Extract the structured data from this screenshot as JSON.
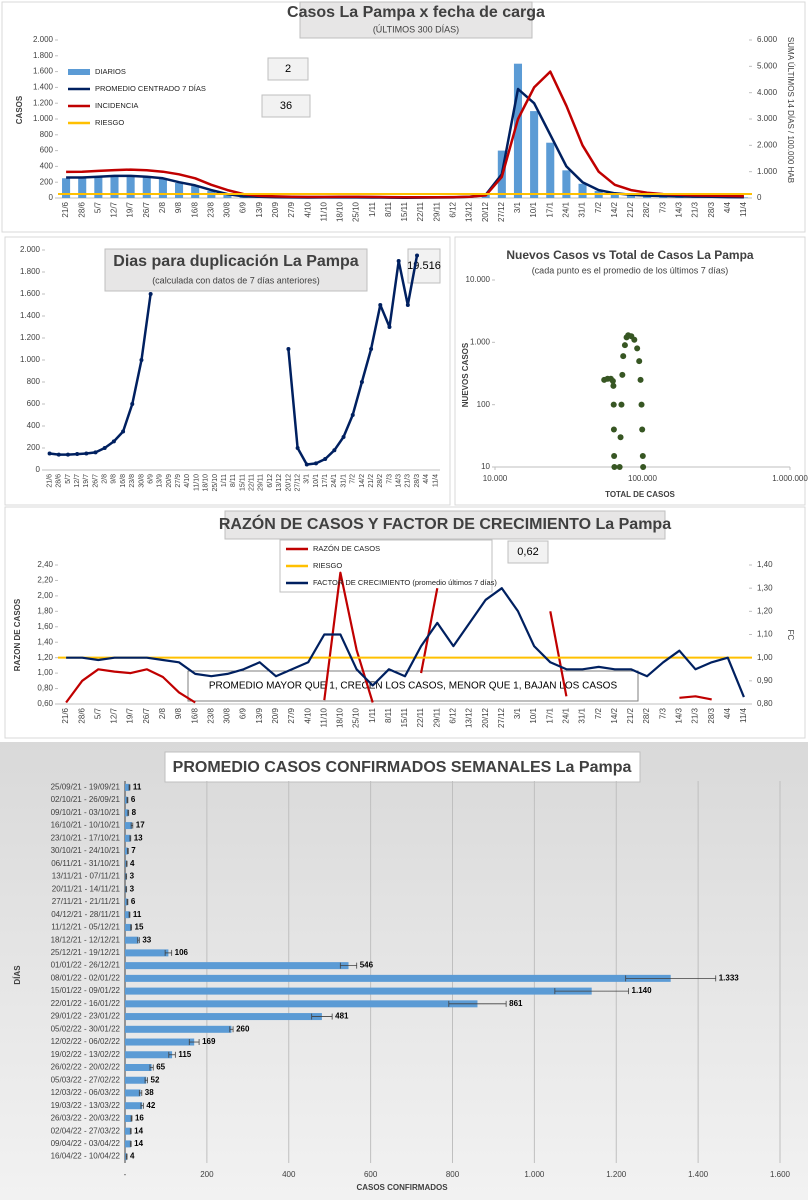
{
  "chart_data": [
    {
      "type": "combo",
      "title": "Casos La Pampa x fecha de carga",
      "subtitle": "(ÚLTIMOS 300 DÍAS)",
      "ylabel": "CASOS",
      "y2label": "SUMA ÚLTIMOS 14 DÍAS / 100.000 HAB",
      "annotations": [
        "2",
        "36"
      ],
      "categories": [
        "21/6",
        "28/6",
        "5/7",
        "12/7",
        "19/7",
        "26/7",
        "2/8",
        "9/8",
        "16/8",
        "23/8",
        "30/8",
        "6/9",
        "13/9",
        "20/9",
        "27/9",
        "4/10",
        "11/10",
        "18/10",
        "25/10",
        "1/11",
        "8/11",
        "15/11",
        "22/11",
        "29/11",
        "6/12",
        "13/12",
        "20/12",
        "27/12",
        "3/1",
        "10/1",
        "17/1",
        "24/1",
        "31/1",
        "7/2",
        "14/2",
        "21/2",
        "28/2",
        "7/3",
        "14/3",
        "21/3",
        "28/3",
        "4/4",
        "11/4"
      ],
      "series": [
        {
          "name": "DIARIOS",
          "type": "bar",
          "color": "#5b9bd5",
          "values": [
            250,
            260,
            270,
            280,
            290,
            270,
            240,
            190,
            150,
            90,
            40,
            15,
            12,
            10,
            8,
            6,
            8,
            10,
            8,
            6,
            5,
            4,
            5,
            6,
            8,
            15,
            60,
            600,
            1700,
            1100,
            700,
            350,
            180,
            90,
            50,
            35,
            25,
            20,
            15,
            15,
            10,
            10,
            8
          ]
        },
        {
          "name": "PROMEDIO CENTRADO 7 DÍAS",
          "type": "line",
          "color": "#002060",
          "values": [
            260,
            260,
            270,
            280,
            280,
            270,
            250,
            200,
            160,
            100,
            50,
            20,
            15,
            10,
            8,
            6,
            8,
            10,
            8,
            6,
            5,
            4,
            5,
            6,
            8,
            15,
            40,
            300,
            1380,
            1200,
            800,
            400,
            200,
            100,
            60,
            40,
            30,
            25,
            20,
            18,
            15,
            12,
            10
          ]
        },
        {
          "name": "INCIDENCIA",
          "type": "line",
          "axis": "y2",
          "color": "#c00000",
          "values": [
            990,
            1000,
            1030,
            1060,
            1080,
            1050,
            1000,
            900,
            750,
            500,
            300,
            150,
            80,
            60,
            50,
            40,
            40,
            50,
            50,
            40,
            35,
            30,
            30,
            30,
            35,
            50,
            100,
            800,
            3000,
            4200,
            4800,
            3500,
            2000,
            1000,
            500,
            300,
            200,
            150,
            120,
            100,
            90,
            80,
            70
          ]
        },
        {
          "name": "RIESGO",
          "type": "level",
          "axis": "y2",
          "color": "#ffc000",
          "value": 150
        }
      ],
      "ylim": [
        0,
        2000
      ],
      "yticks": [
        0,
        200,
        400,
        600,
        800,
        {
          "value": 1000,
          "label": "1.000"
        },
        {
          "value": 1200,
          "label": "1.200"
        },
        {
          "value": 1400,
          "label": "1.400"
        },
        {
          "value": 1600,
          "label": "1.600"
        },
        {
          "value": 1800,
          "label": "1.800"
        },
        {
          "value": 2000,
          "label": "2.000"
        }
      ],
      "y2lim": [
        0,
        6000
      ],
      "y2ticks": [
        0,
        {
          "value": 1000,
          "label": "1.000"
        },
        {
          "value": 2000,
          "label": "2.000"
        },
        {
          "value": 3000,
          "label": "3.000"
        },
        {
          "value": 4000,
          "label": "4.000"
        },
        {
          "value": 5000,
          "label": "5.000"
        },
        {
          "value": 6000,
          "label": "6.000"
        }
      ]
    },
    {
      "type": "line",
      "title": "Dias para duplicación La Pampa",
      "subtitle": "(calculada con datos de 7 días anteriores)",
      "annotations": [
        "19.516"
      ],
      "color": "#002060",
      "markers": true,
      "categories": [
        "21/6",
        "28/6",
        "5/7",
        "12/7",
        "19/7",
        "26/7",
        "2/8",
        "9/8",
        "16/8",
        "23/8",
        "30/8",
        "6/9",
        "13/9",
        "20/9",
        "27/9",
        "4/10",
        "11/10",
        "18/10",
        "25/10",
        "1/11",
        "8/11",
        "15/11",
        "22/11",
        "29/11",
        "6/12",
        "13/12",
        "20/12",
        "27/12",
        "3/1",
        "10/1",
        "17/1",
        "24/1",
        "31/1",
        "7/2",
        "14/2",
        "21/2",
        "28/2",
        "7/3",
        "14/3",
        "21/3",
        "28/3",
        "4/4",
        "11/4"
      ],
      "values": [
        150,
        140,
        140,
        145,
        150,
        160,
        200,
        260,
        350,
        600,
        1000,
        1600,
        null,
        null,
        null,
        null,
        null,
        null,
        null,
        null,
        null,
        null,
        null,
        null,
        null,
        null,
        1100,
        200,
        50,
        60,
        100,
        180,
        300,
        500,
        800,
        1100,
        1500,
        1300,
        1900,
        1500,
        1950,
        null,
        null
      ],
      "ylim": [
        0,
        2000
      ],
      "yticks": [
        0,
        200,
        400,
        600,
        800,
        {
          "value": 1000,
          "label": "1.000"
        },
        {
          "value": 1200,
          "label": "1.200"
        },
        {
          "value": 1400,
          "label": "1.400"
        },
        {
          "value": 1600,
          "label": "1.600"
        },
        {
          "value": 1800,
          "label": "1.800"
        },
        {
          "value": 2000,
          "label": "2.000"
        }
      ]
    },
    {
      "type": "scatter",
      "title": "Nuevos Casos vs Total de Casos La Pampa",
      "subtitle": "(cada punto es el promedio de los últimos 7 días)",
      "xlabel": "TOTAL DE CASOS",
      "ylabel": "NUEVOS CASOS",
      "color": "#375623",
      "log": true,
      "x": [
        55000,
        58000,
        61000,
        63000,
        63500,
        63800,
        64000,
        64200,
        64500,
        70000,
        71000,
        72000,
        73000,
        74000,
        76000,
        78000,
        80000,
        84000,
        88000,
        92000,
        95000,
        97000,
        98500,
        99500,
        100500,
        101000
      ],
      "values": [
        250,
        260,
        260,
        240,
        200,
        100,
        40,
        15,
        10,
        10,
        30,
        100,
        300,
        600,
        900,
        1200,
        1300,
        1250,
        1100,
        800,
        500,
        250,
        100,
        40,
        15,
        10
      ],
      "xlim": [
        10000,
        1000000
      ],
      "xticks": [
        {
          "value": 10000,
          "label": "10.000"
        },
        {
          "value": 100000,
          "label": "100.000"
        },
        {
          "value": 1000000,
          "label": "1.000.000"
        }
      ],
      "ylim": [
        10,
        10000
      ],
      "yticks": [
        10,
        100,
        {
          "value": 1000,
          "label": "1.000"
        },
        {
          "value": 10000,
          "label": "10.000"
        }
      ]
    },
    {
      "type": "line",
      "title": "RAZÓN DE CASOS Y FACTOR DE CRECIMIENTO La Pampa",
      "ylabel": "RAZON DE CASOS",
      "y2label": "FC",
      "annotations": [
        "0,62",
        "PROMEDIO MAYOR QUE 1, CRECEN LOS CASOS, MENOR QUE 1, BAJAN LOS CASOS"
      ],
      "categories": [
        "21/6",
        "28/6",
        "5/7",
        "12/7",
        "19/7",
        "26/7",
        "2/8",
        "9/8",
        "16/8",
        "23/8",
        "30/8",
        "6/9",
        "13/9",
        "20/9",
        "27/9",
        "4/10",
        "11/10",
        "18/10",
        "25/10",
        "1/11",
        "8/11",
        "15/11",
        "22/11",
        "29/11",
        "6/12",
        "13/12",
        "20/12",
        "27/12",
        "3/1",
        "10/1",
        "17/1",
        "24/1",
        "31/1",
        "7/2",
        "14/2",
        "21/2",
        "28/2",
        "7/3",
        "14/3",
        "21/3",
        "28/3",
        "4/4",
        "11/4"
      ],
      "series": [
        {
          "name": "RAZÓN DE CASOS",
          "color": "#c00000",
          "values": [
            0.62,
            0.9,
            1.05,
            1.02,
            1.0,
            1.05,
            0.95,
            0.75,
            0.62,
            null,
            null,
            null,
            null,
            null,
            null,
            null,
            0.65,
            2.3,
            1.3,
            0.62,
            null,
            null,
            1.0,
            2.1,
            null,
            null,
            null,
            null,
            null,
            null,
            1.8,
            0.7,
            null,
            null,
            null,
            null,
            null,
            null,
            0.68,
            0.7,
            0.66,
            null,
            0.62
          ]
        },
        {
          "name": "RIESGO",
          "type": "level",
          "color": "#ffc000",
          "value": 1.2
        },
        {
          "name": "FACTOR DE CRECIMIENTO (promedio últimos 7 días)",
          "axis": "y2",
          "color": "#002060",
          "values": [
            1.0,
            1.0,
            0.99,
            1.0,
            1.0,
            1.0,
            0.99,
            0.98,
            0.93,
            0.92,
            0.93,
            0.95,
            0.98,
            0.92,
            0.95,
            0.98,
            1.1,
            1.1,
            0.95,
            0.88,
            0.95,
            0.92,
            1.05,
            1.15,
            1.05,
            1.15,
            1.25,
            1.3,
            1.2,
            1.05,
            0.98,
            0.95,
            0.95,
            0.96,
            0.95,
            0.95,
            0.92,
            0.98,
            1.03,
            0.95,
            0.98,
            1.0,
            0.83
          ]
        }
      ],
      "ylim": [
        0.6,
        2.4
      ],
      "yticks": [
        {
          "value": 0.6,
          "label": "0,60"
        },
        {
          "value": 0.8,
          "label": "0,80"
        },
        {
          "value": 1.0,
          "label": "1,00"
        },
        {
          "value": 1.2,
          "label": "1,20"
        },
        {
          "value": 1.4,
          "label": "1,40"
        },
        {
          "value": 1.6,
          "label": "1,60"
        },
        {
          "value": 1.8,
          "label": "1,80"
        },
        {
          "value": 2.0,
          "label": "2,00"
        },
        {
          "value": 2.2,
          "label": "2,20"
        },
        {
          "value": 2.4,
          "label": "2,40"
        }
      ],
      "y2lim": [
        0.8,
        1.4
      ],
      "y2ticks": [
        {
          "value": 0.8,
          "label": "0,80"
        },
        {
          "value": 0.9,
          "label": "0,90"
        },
        {
          "value": 1.0,
          "label": "1,00"
        },
        {
          "value": 1.1,
          "label": "1,10"
        },
        {
          "value": 1.2,
          "label": "1,20"
        },
        {
          "value": 1.3,
          "label": "1,30"
        },
        {
          "value": 1.4,
          "label": "1,40"
        }
      ]
    },
    {
      "type": "barh",
      "title": "PROMEDIO CASOS CONFIRMADOS SEMANALES La Pampa",
      "xlabel": "CASOS CONFIRMADOS",
      "ylabel": "DÍAS",
      "color": "#5b9bd5",
      "grid": true,
      "categories": [
        "25/09/21 - 19/09/21",
        "02/10/21 - 26/09/21",
        "09/10/21 - 03/10/21",
        "16/10/21 - 10/10/21",
        "23/10/21 - 17/10/21",
        "30/10/21 - 24/10/21",
        "06/11/21 - 31/10/21",
        "13/11/21 - 07/11/21",
        "20/11/21 - 14/11/21",
        "27/11/21 - 21/11/21",
        "04/12/21 - 28/11/21",
        "11/12/21 - 05/12/21",
        "18/12/21 - 12/12/21",
        "25/12/21 - 19/12/21",
        "01/01/22 - 26/12/21",
        "08/01/22 - 02/01/22",
        "15/01/22 - 09/01/22",
        "22/01/22 - 16/01/22",
        "29/01/22 - 23/01/22",
        "05/02/22 - 30/01/22",
        "12/02/22 - 06/02/22",
        "19/02/22 - 13/02/22",
        "26/02/22 - 20/02/22",
        "05/03/22 - 27/02/22",
        "12/03/22 - 06/03/22",
        "19/03/22 - 13/03/22",
        "26/03/22 - 20/03/22",
        "02/04/22 - 27/03/22",
        "09/04/22 - 03/04/22",
        "16/04/22 - 10/04/22"
      ],
      "values": [
        11,
        6,
        8,
        17,
        13,
        7,
        4,
        3,
        3,
        6,
        11,
        15,
        33,
        106,
        546,
        1333,
        1140,
        861,
        481,
        260,
        169,
        115,
        65,
        52,
        38,
        42,
        16,
        14,
        14,
        4
      ],
      "value_labels": [
        "11",
        "6",
        "8",
        "17",
        "13",
        "7",
        "4",
        "3",
        "3",
        "6",
        "11",
        "15",
        "33",
        "106",
        "546",
        "1.333",
        "1.140",
        "861",
        "481",
        "260",
        "169",
        "115",
        "65",
        "52",
        "38",
        "42",
        "16",
        "14",
        "14",
        "4"
      ],
      "errors": [
        1,
        1,
        1,
        2,
        1,
        1,
        1,
        1,
        1,
        1,
        1,
        1,
        2,
        8,
        20,
        110,
        90,
        70,
        25,
        4,
        12,
        8,
        4,
        3,
        3,
        3,
        1,
        1,
        1,
        1
      ],
      "xlim": [
        0,
        1600
      ],
      "xticks": [
        {
          "value": 0,
          "label": "-"
        },
        200,
        400,
        600,
        800,
        {
          "value": 1000,
          "label": "1.000"
        },
        {
          "value": 1200,
          "label": "1.200"
        },
        {
          "value": 1400,
          "label": "1.400"
        },
        {
          "value": 1600,
          "label": "1.600"
        }
      ]
    }
  ]
}
